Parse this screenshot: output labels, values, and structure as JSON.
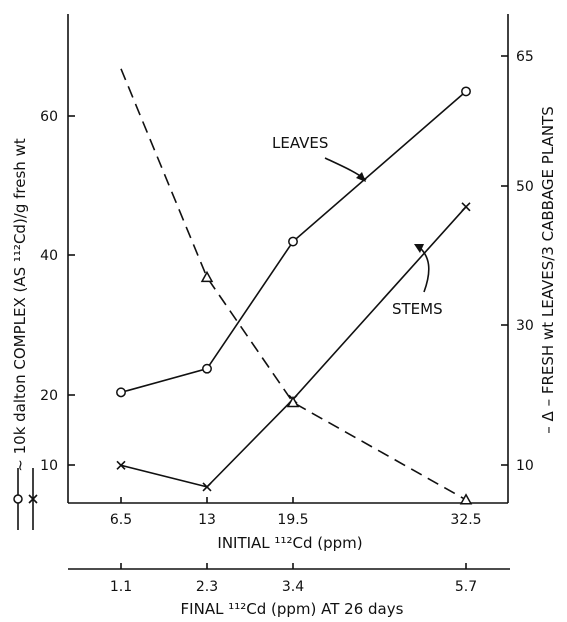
{
  "chart_data": {
    "type": "line",
    "x": [
      6.5,
      13,
      19.5,
      32.5
    ],
    "x_tick_labels": [
      "6.5",
      "13",
      "19.5",
      "32.5"
    ],
    "xlabel": "INITIAL ¹¹²Cd (ppm)",
    "x2_tick_labels": [
      "1.1",
      "2.3",
      "3.4",
      "5.7"
    ],
    "x2label": "FINAL ¹¹²Cd (ppm) AT 26 days",
    "ylabel_left": "~ 10k dalton COMPLEX (AS ¹¹²Cd)/g fresh wt",
    "ylabel_right": "– Δ – FRESH wt LEAVES/3 CABBAGE PLANTS",
    "y_left_ticks": [
      "10",
      "20",
      "40",
      "60"
    ],
    "y_right_ticks": [
      "10",
      "30",
      "50",
      "65"
    ],
    "series": [
      {
        "name": "LEAVES",
        "marker": "circle",
        "axis": "left",
        "style": "solid",
        "values": [
          19.3,
          22.7,
          41,
          62.6
        ]
      },
      {
        "name": "STEMS",
        "marker": "cross",
        "axis": "left",
        "style": "solid",
        "values": [
          8.8,
          5.7,
          18.3,
          46
        ]
      },
      {
        "name": "",
        "marker": "triangle",
        "axis": "right",
        "style": "dashed",
        "values": [
          67,
          37,
          19,
          5
        ]
      }
    ],
    "annotations": [
      "LEAVES",
      "STEMS"
    ],
    "legend_left_symbols": "o and x markers beside left axis label",
    "grid": false
  }
}
